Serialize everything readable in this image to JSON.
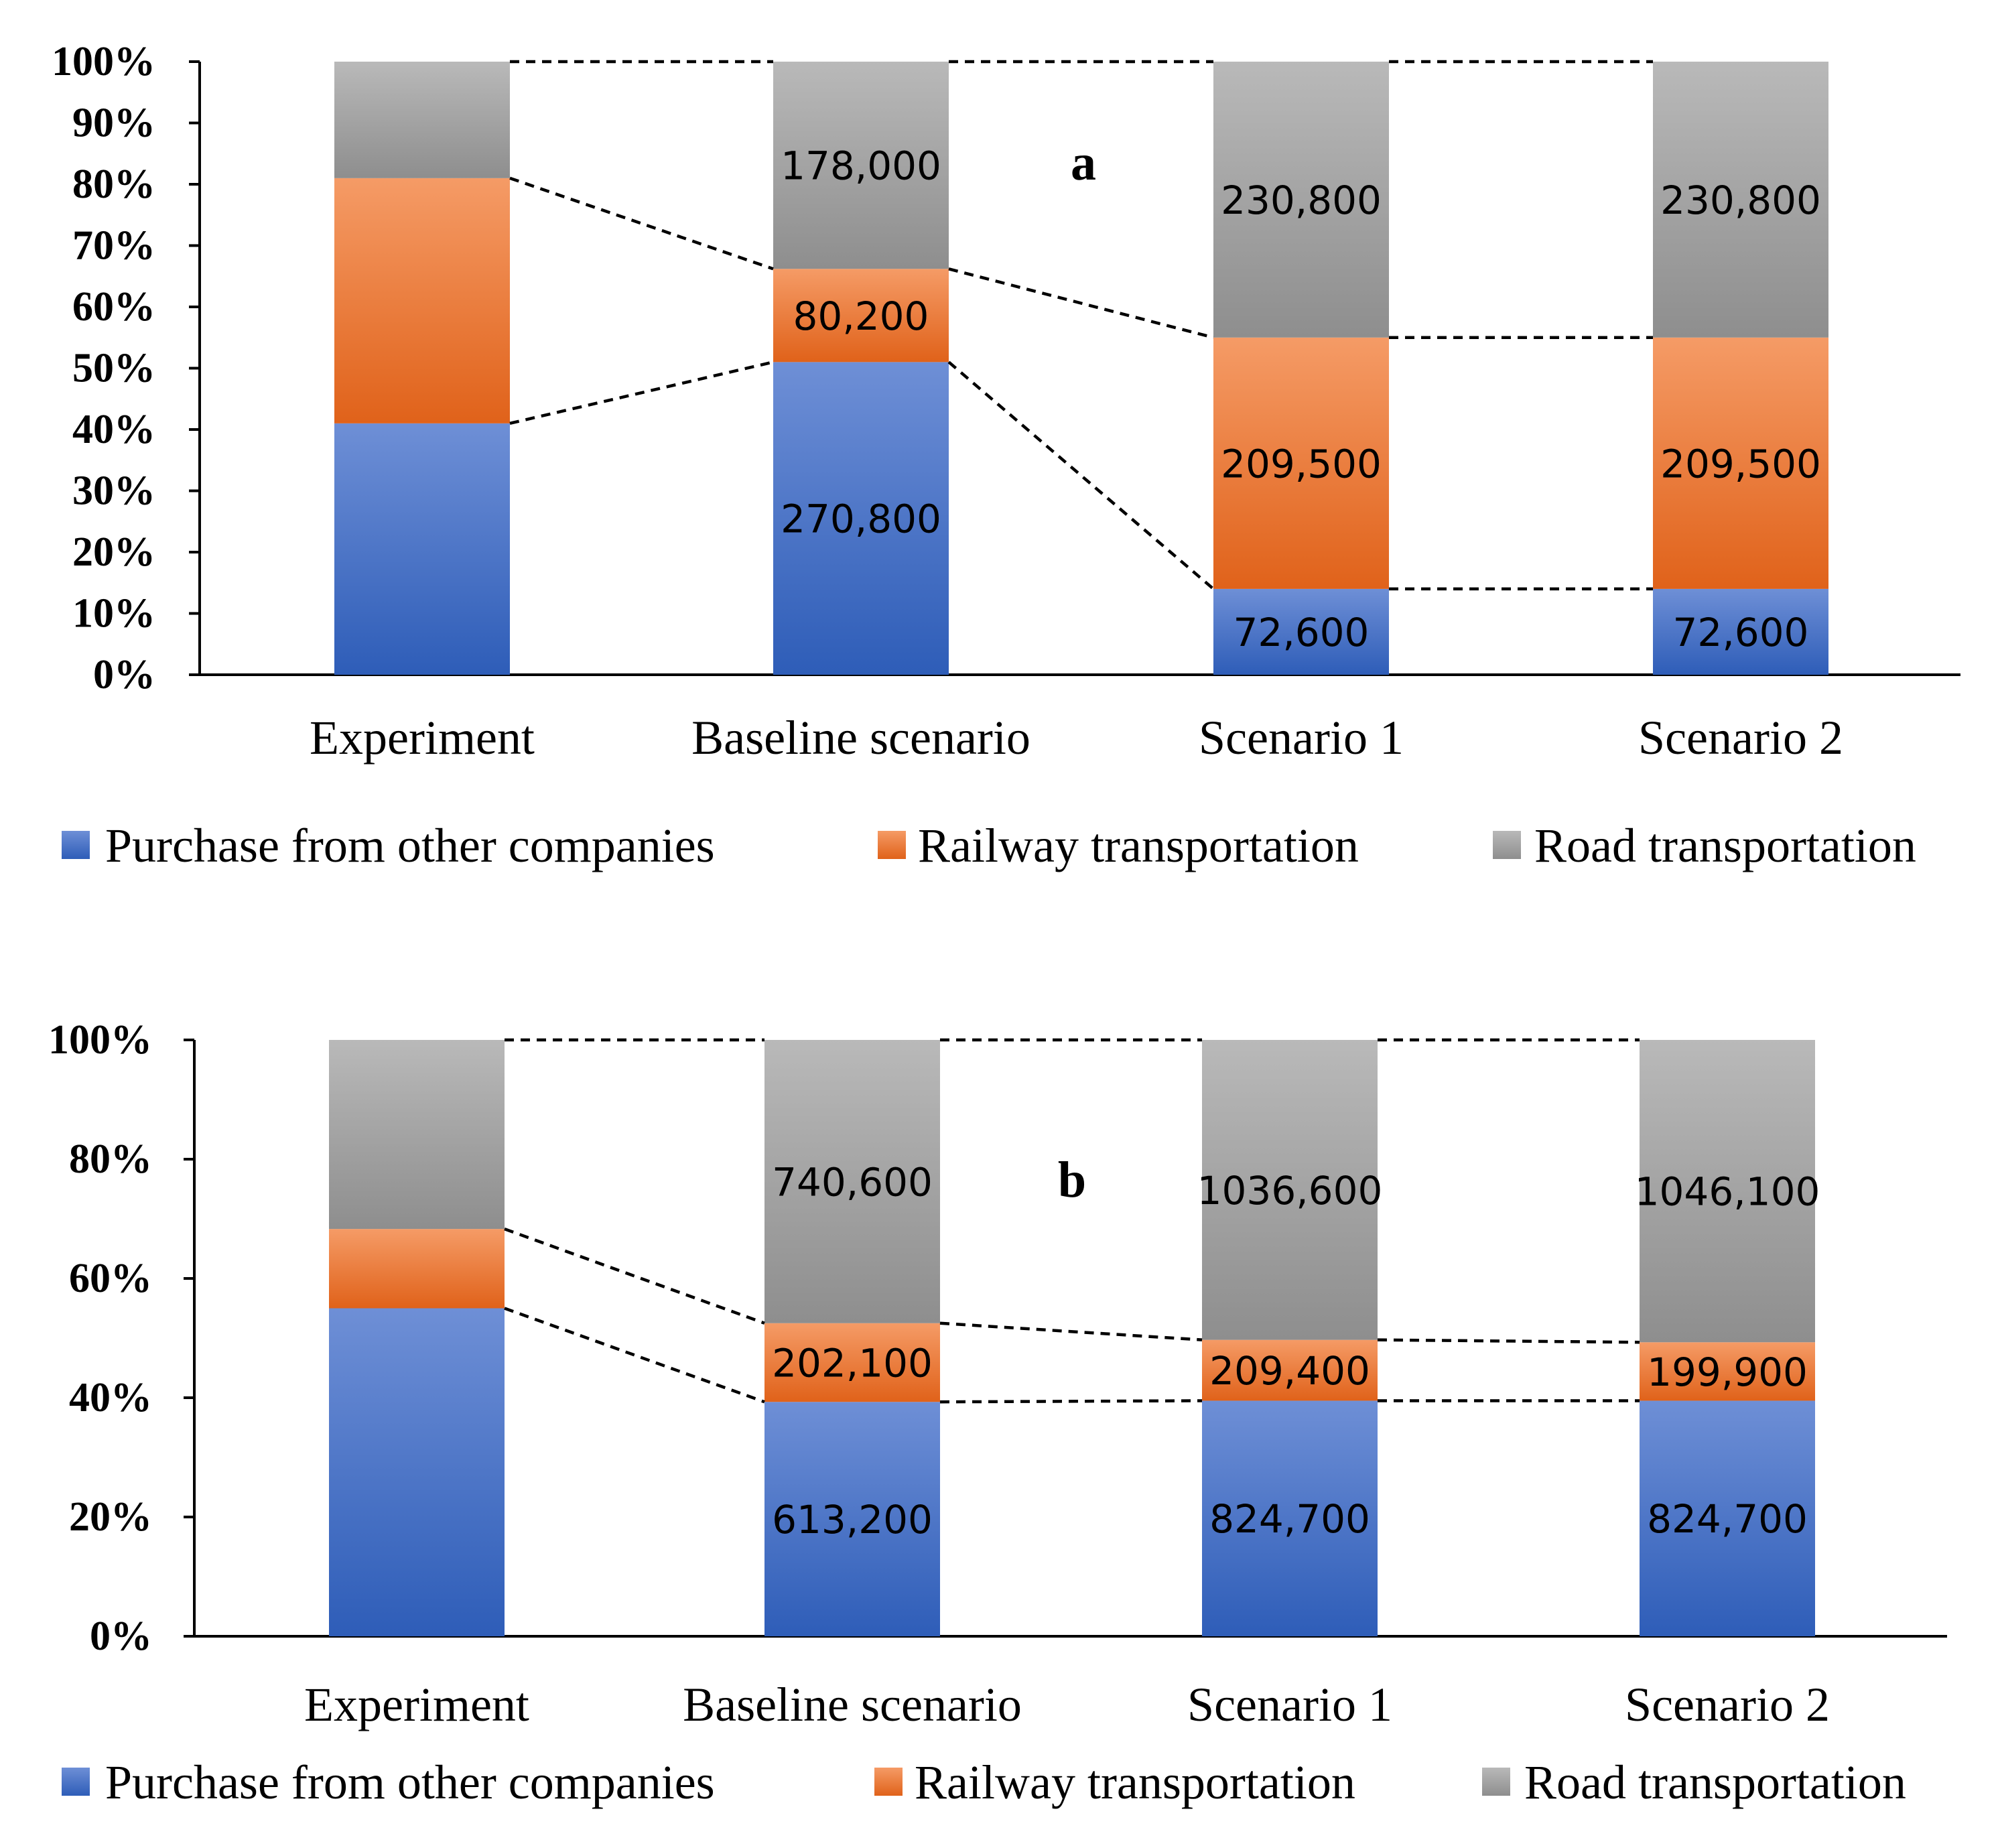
{
  "chart_data": [
    {
      "type": "bar",
      "stacked": true,
      "normalized": true,
      "panel_label": "a",
      "categories": [
        "Experiment",
        "Baseline scenario",
        "Scenario 1",
        "Scenario 2"
      ],
      "yticks": [
        "0%",
        "10%",
        "20%",
        "30%",
        "40%",
        "50%",
        "60%",
        "70%",
        "80%",
        "90%",
        "100%"
      ],
      "ylim": [
        0,
        100
      ],
      "series": [
        {
          "name": "Purchase from other companies",
          "color": "#4472C4",
          "values": [
            41,
            51,
            14,
            14
          ],
          "labels": [
            "",
            "270,800",
            "72,600",
            "72,600"
          ]
        },
        {
          "name": "Railway transportation",
          "color": "#ED7D31",
          "values": [
            40,
            15.2,
            41,
            41
          ],
          "labels": [
            "",
            "80,200",
            "209,500",
            "209,500"
          ]
        },
        {
          "name": "Road transportation",
          "color": "#A5A5A5",
          "values": [
            19,
            33.8,
            45,
            45
          ],
          "labels": [
            "",
            "178,000",
            "230,800",
            "230,800"
          ]
        }
      ],
      "legend": [
        "Purchase from other companies",
        "Railway transportation",
        "Road transportation"
      ]
    },
    {
      "type": "bar",
      "stacked": true,
      "normalized": true,
      "panel_label": "b",
      "categories": [
        "Experiment",
        "Baseline scenario",
        "Scenario 1",
        "Scenario 2"
      ],
      "yticks": [
        "0%",
        "20%",
        "40%",
        "60%",
        "80%",
        "100%"
      ],
      "ylim": [
        0,
        100
      ],
      "series": [
        {
          "name": "Purchase from other companies",
          "color": "#4472C4",
          "values": [
            55,
            39.3,
            39.5,
            39.5
          ],
          "labels": [
            "",
            "613,200",
            "824,700",
            "824,700"
          ]
        },
        {
          "name": "Railway transportation",
          "color": "#ED7D31",
          "values": [
            13.3,
            13.2,
            10.2,
            9.8
          ],
          "labels": [
            "",
            "202,100",
            "209,400",
            "199,900"
          ]
        },
        {
          "name": "Road transportation",
          "color": "#A5A5A5",
          "values": [
            31.7,
            47.5,
            50.3,
            50.7
          ],
          "labels": [
            "",
            "740,600",
            "1036,600",
            "1046,100"
          ]
        }
      ],
      "legend": [
        "Purchase from other companies",
        "Railway transportation",
        "Road transportation"
      ]
    }
  ]
}
